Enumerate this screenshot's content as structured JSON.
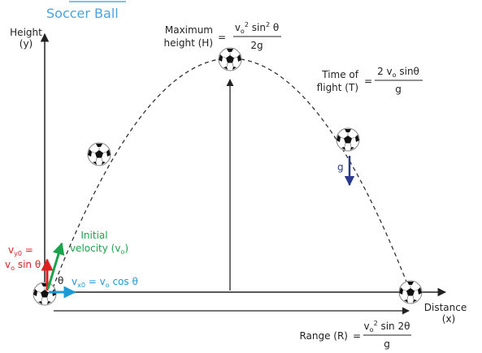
{
  "title": "Soccer Ball",
  "y_axis": {
    "label": [
      "Height",
      "(y)"
    ]
  },
  "x_axis": {
    "label": [
      "Distance",
      "(x)"
    ]
  },
  "max_height": {
    "label": [
      "Maximum",
      "height (H)"
    ],
    "equals": "=",
    "numerator": [
      "v",
      "o",
      "2",
      " sin",
      "2",
      " θ"
    ],
    "denominator": "2g"
  },
  "time_of_flight": {
    "label": [
      "Time of",
      "flight (T)"
    ],
    "equals": "=",
    "numerator": [
      "2 v",
      "o",
      " sinθ"
    ],
    "denominator": "g"
  },
  "range": {
    "label": "Range (R)",
    "equals": "=",
    "numerator": [
      "v",
      "o",
      "2",
      " sin 2θ"
    ],
    "denominator": "g"
  },
  "gravity": "g",
  "initial_velocity": {
    "label": [
      "Initial",
      "velocity (v",
      "o",
      ")"
    ]
  },
  "vertical_component": [
    "v",
    "y0",
    " =",
    "v",
    "o",
    " sin θ"
  ],
  "angle": "θ",
  "horizontal_component": [
    "v",
    "x0",
    " = v",
    "o",
    " cos θ"
  ]
}
